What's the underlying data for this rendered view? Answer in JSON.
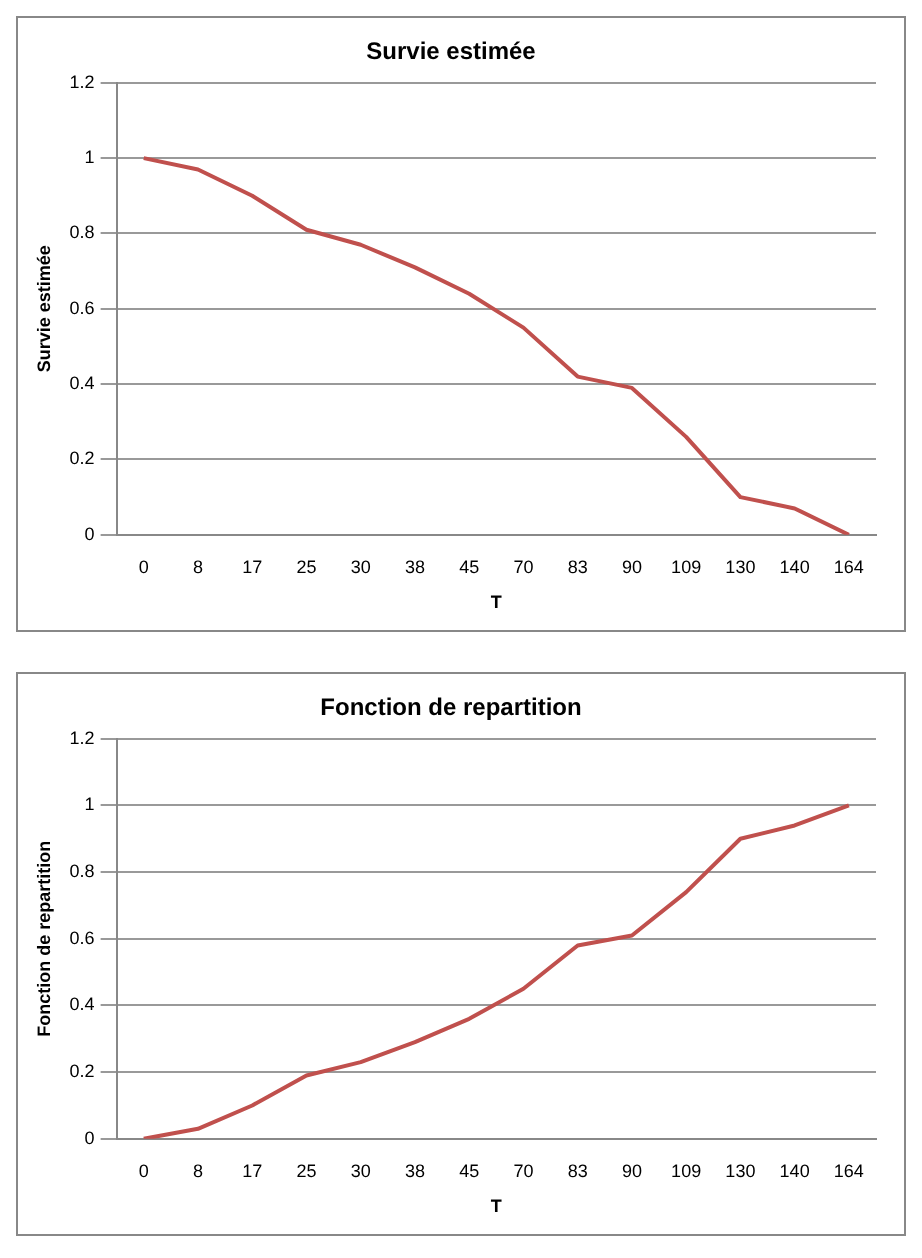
{
  "chart_data": [
    {
      "type": "line",
      "title": "Survie estimée",
      "xlabel": "T",
      "ylabel": "Survie estimée",
      "categories": [
        "0",
        "8",
        "17",
        "25",
        "30",
        "38",
        "45",
        "70",
        "83",
        "90",
        "109",
        "130",
        "140",
        "164"
      ],
      "series": [
        {
          "color": "#c0504d",
          "values": [
            1,
            0.97,
            0.9,
            0.81,
            0.77,
            0.71,
            0.64,
            0.55,
            0.42,
            0.39,
            0.26,
            0.1,
            0.07,
            0
          ]
        }
      ],
      "ylim": [
        0,
        1.2
      ],
      "yticks": [
        0,
        0.2,
        0.4,
        0.6,
        0.8,
        1,
        1.2
      ],
      "grid": "y",
      "legend": false,
      "marker": "none"
    },
    {
      "type": "line",
      "title": "Fonction de repartition",
      "xlabel": "T",
      "ylabel": "Fonction de repartition",
      "categories": [
        "0",
        "8",
        "17",
        "25",
        "30",
        "38",
        "45",
        "70",
        "83",
        "90",
        "109",
        "130",
        "140",
        "164"
      ],
      "series": [
        {
          "color": "#c0504d",
          "values": [
            0,
            0.03,
            0.1,
            0.19,
            0.23,
            0.29,
            0.36,
            0.45,
            0.58,
            0.61,
            0.74,
            0.9,
            0.94,
            1
          ]
        }
      ],
      "ylim": [
        0,
        1.2
      ],
      "yticks": [
        0,
        0.2,
        0.4,
        0.6,
        0.8,
        1,
        1.2
      ],
      "grid": "y",
      "legend": false,
      "marker": "none"
    }
  ]
}
